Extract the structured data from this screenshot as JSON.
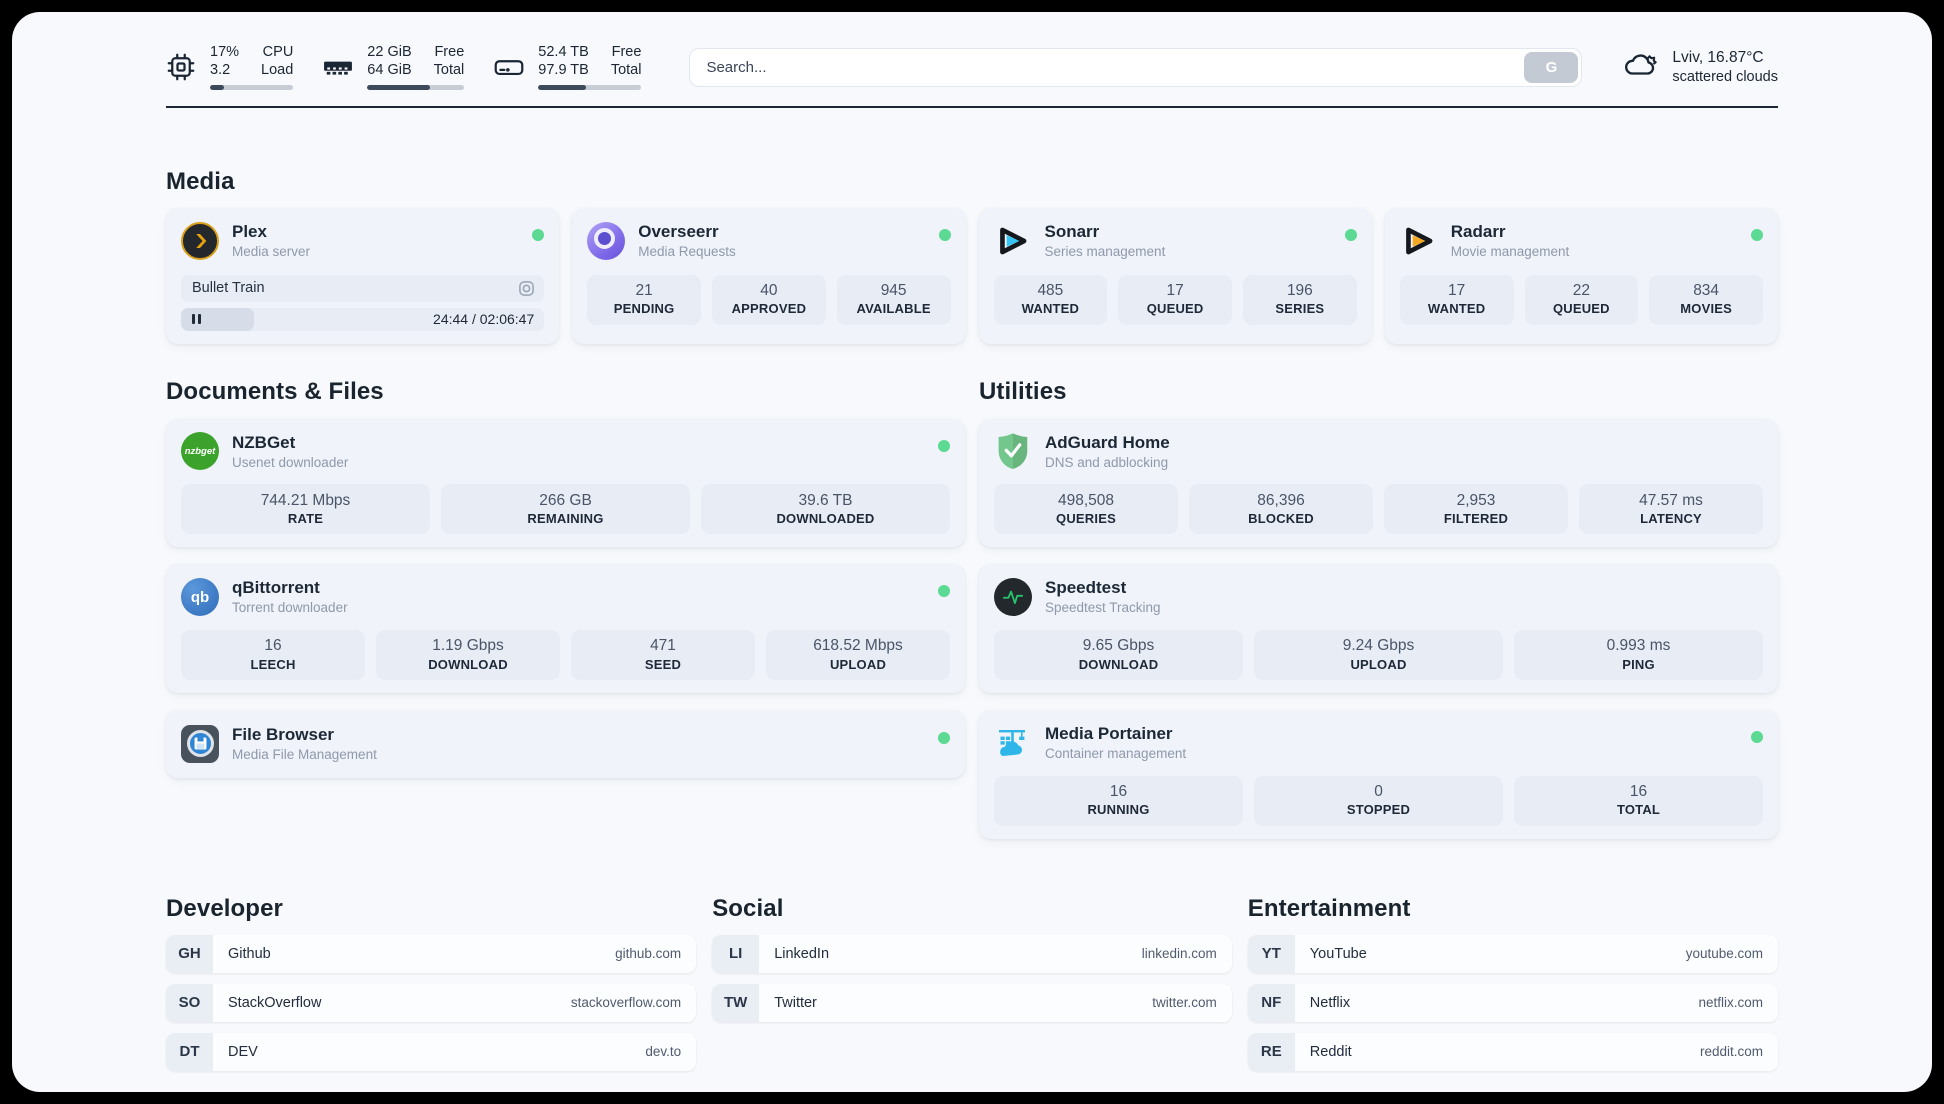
{
  "topbar": {
    "cpu": {
      "values": [
        "17%",
        "3.2"
      ],
      "labels": [
        "CPU",
        "Load"
      ],
      "progress_pct": 17
    },
    "memory": {
      "values": [
        "22 GiB",
        "64 GiB"
      ],
      "labels": [
        "Free",
        "Total"
      ],
      "progress_pct": 65
    },
    "disk": {
      "values": [
        "52.4 TB",
        "97.9 TB"
      ],
      "labels": [
        "Free",
        "Total"
      ],
      "progress_pct": 46
    },
    "search": {
      "placeholder": "Search...",
      "button_label": "G"
    },
    "weather": {
      "location_temp": "Lviv, 16.87°C",
      "condition": "scattered clouds"
    }
  },
  "media": {
    "title": "Media",
    "plex": {
      "name": "Plex",
      "subtitle": "Media server",
      "now_playing": "Bullet Train",
      "time": "24:44 / 02:06:47",
      "progress_pct": 20
    },
    "overseerr": {
      "name": "Overseerr",
      "subtitle": "Media Requests",
      "stats": [
        {
          "value": "21",
          "label": "PENDING"
        },
        {
          "value": "40",
          "label": "APPROVED"
        },
        {
          "value": "945",
          "label": "AVAILABLE"
        }
      ]
    },
    "sonarr": {
      "name": "Sonarr",
      "subtitle": "Series management",
      "stats": [
        {
          "value": "485",
          "label": "WANTED"
        },
        {
          "value": "17",
          "label": "QUEUED"
        },
        {
          "value": "196",
          "label": "SERIES"
        }
      ]
    },
    "radarr": {
      "name": "Radarr",
      "subtitle": "Movie management",
      "stats": [
        {
          "value": "17",
          "label": "WANTED"
        },
        {
          "value": "22",
          "label": "QUEUED"
        },
        {
          "value": "834",
          "label": "MOVIES"
        }
      ]
    }
  },
  "documents": {
    "title": "Documents & Files",
    "nzbget": {
      "name": "NZBGet",
      "subtitle": "Usenet downloader",
      "stats": [
        {
          "value": "744.21 Mbps",
          "label": "RATE"
        },
        {
          "value": "266 GB",
          "label": "REMAINING"
        },
        {
          "value": "39.6 TB",
          "label": "DOWNLOADED"
        }
      ]
    },
    "qbittorrent": {
      "name": "qBittorrent",
      "subtitle": "Torrent downloader",
      "stats": [
        {
          "value": "16",
          "label": "LEECH"
        },
        {
          "value": "1.19 Gbps",
          "label": "DOWNLOAD"
        },
        {
          "value": "471",
          "label": "SEED"
        },
        {
          "value": "618.52 Mbps",
          "label": "UPLOAD"
        }
      ]
    },
    "filebrowser": {
      "name": "File Browser",
      "subtitle": "Media File Management"
    }
  },
  "utilities": {
    "title": "Utilities",
    "adguard": {
      "name": "AdGuard Home",
      "subtitle": "DNS and adblocking",
      "stats": [
        {
          "value": "498,508",
          "label": "QUERIES"
        },
        {
          "value": "86,396",
          "label": "BLOCKED"
        },
        {
          "value": "2,953",
          "label": "FILTERED"
        },
        {
          "value": "47.57 ms",
          "label": "LATENCY"
        }
      ]
    },
    "speedtest": {
      "name": "Speedtest",
      "subtitle": "Speedtest Tracking",
      "stats": [
        {
          "value": "9.65 Gbps",
          "label": "DOWNLOAD"
        },
        {
          "value": "9.24 Gbps",
          "label": "UPLOAD"
        },
        {
          "value": "0.993 ms",
          "label": "PING"
        }
      ]
    },
    "portainer": {
      "name": "Media Portainer",
      "subtitle": "Container management",
      "stats": [
        {
          "value": "16",
          "label": "RUNNING"
        },
        {
          "value": "0",
          "label": "STOPPED"
        },
        {
          "value": "16",
          "label": "TOTAL"
        }
      ]
    }
  },
  "bookmarks": {
    "developer": {
      "title": "Developer",
      "links": [
        {
          "badge": "GH",
          "name": "Github",
          "url": "github.com"
        },
        {
          "badge": "SO",
          "name": "StackOverflow",
          "url": "stackoverflow.com"
        },
        {
          "badge": "DT",
          "name": "DEV",
          "url": "dev.to"
        }
      ]
    },
    "social": {
      "title": "Social",
      "links": [
        {
          "badge": "LI",
          "name": "LinkedIn",
          "url": "linkedin.com"
        },
        {
          "badge": "TW",
          "name": "Twitter",
          "url": "twitter.com"
        }
      ]
    },
    "entertainment": {
      "title": "Entertainment",
      "links": [
        {
          "badge": "YT",
          "name": "YouTube",
          "url": "youtube.com"
        },
        {
          "badge": "NF",
          "name": "Netflix",
          "url": "netflix.com"
        },
        {
          "badge": "RE",
          "name": "Reddit",
          "url": "reddit.com"
        }
      ]
    }
  },
  "colors": {
    "status_online": "#5cd992",
    "progress_fill": "#3d4a5c",
    "brand_plex": "#e5a00d",
    "brand_overseerr": "#7c67e8",
    "brand_sonarr": "#35c5f4",
    "brand_radarr": "#f7a823",
    "brand_nzbget": "#3ba32c",
    "brand_qbittorrent": "#3579c9",
    "brand_adguard": "#68b67d",
    "brand_speedtest_pulse": "#27c46d",
    "brand_portainer": "#2fb6e8"
  }
}
